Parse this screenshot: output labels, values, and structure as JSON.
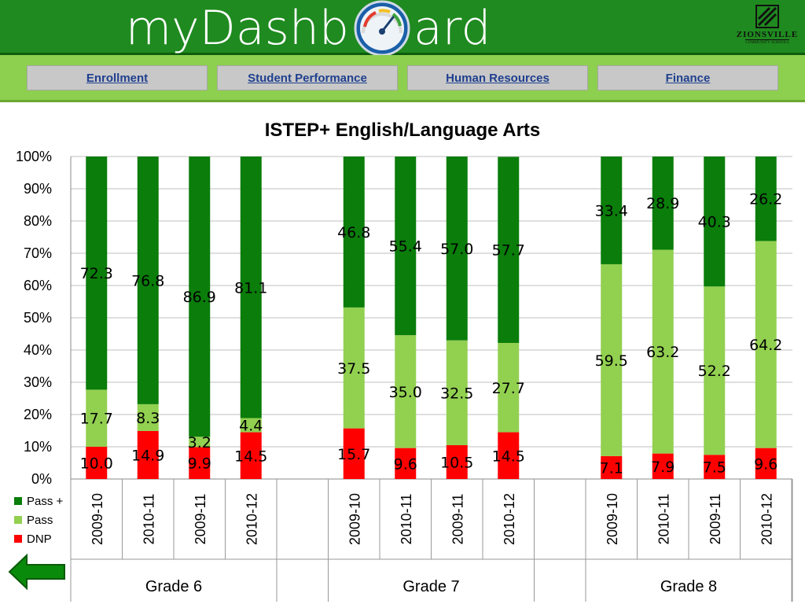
{
  "header": {
    "logo_part1": "myDashb",
    "logo_part2": "ard",
    "crest_name": "ZIONSVILLE",
    "crest_sub": "Community Schools"
  },
  "nav": {
    "items": [
      {
        "label": "Enrollment"
      },
      {
        "label": "Student Performance"
      },
      {
        "label": "Human Resources"
      },
      {
        "label": "Finance"
      }
    ]
  },
  "colors": {
    "header_green": "#1f8a1f",
    "nav_green": "#8dcf4e",
    "pass_plus": "#0a7d0a",
    "pass": "#92d050",
    "dnp": "#ff0000"
  },
  "back_button": {
    "icon": "left-arrow-icon"
  },
  "chart_data": {
    "type": "bar",
    "stacked": true,
    "percent": true,
    "title": "ISTEP+ English/Language Arts",
    "ylim": [
      0,
      100
    ],
    "yticks": [
      "0%",
      "10%",
      "20%",
      "30%",
      "40%",
      "50%",
      "60%",
      "70%",
      "80%",
      "90%",
      "100%"
    ],
    "grid": true,
    "legend_position": "bottom-left",
    "groups": [
      {
        "label": "Grade 6",
        "categories": [
          "2009-10",
          "2010-11",
          "2009-11",
          "2010-12"
        ]
      },
      {
        "label": "Grade 7",
        "categories": [
          "2009-10",
          "2010-11",
          "2009-11",
          "2010-12"
        ]
      },
      {
        "label": "Grade 8",
        "categories": [
          "2009-10",
          "2010-11",
          "2009-11",
          "2010-12"
        ]
      }
    ],
    "series": [
      {
        "name": "DNP",
        "color": "#ff0000",
        "values": [
          10.0,
          14.9,
          9.9,
          14.5,
          15.7,
          9.6,
          10.5,
          14.5,
          7.1,
          7.9,
          7.5,
          9.6
        ],
        "labels": [
          "10.0",
          "14.9",
          "9.9",
          "14.5",
          "15.7",
          "9.6",
          "10.5",
          "14.5",
          "7.1",
          "7.9",
          "7.5",
          "9.6"
        ]
      },
      {
        "name": "Pass",
        "color": "#92d050",
        "values": [
          17.7,
          8.3,
          3.2,
          4.4,
          37.5,
          35.0,
          32.5,
          27.7,
          59.5,
          63.2,
          52.2,
          64.2
        ],
        "labels": [
          "17.7",
          "8.3",
          "3.2",
          "4.4",
          "37.5",
          "35.0",
          "32.5",
          "27.7",
          "59.5",
          "63.2",
          "52.2",
          "64.2"
        ]
      },
      {
        "name": "Pass +",
        "color": "#0a7d0a",
        "values": [
          72.3,
          76.8,
          86.9,
          81.1,
          46.8,
          55.4,
          57.0,
          57.7,
          33.4,
          28.9,
          40.3,
          26.2
        ],
        "labels": [
          "72.3",
          "76.8",
          "86.9",
          "81.1",
          "46.8",
          "55.4",
          "57.0",
          "57.7",
          "33.4",
          "28.9",
          "40.3",
          "26.2"
        ]
      }
    ]
  }
}
